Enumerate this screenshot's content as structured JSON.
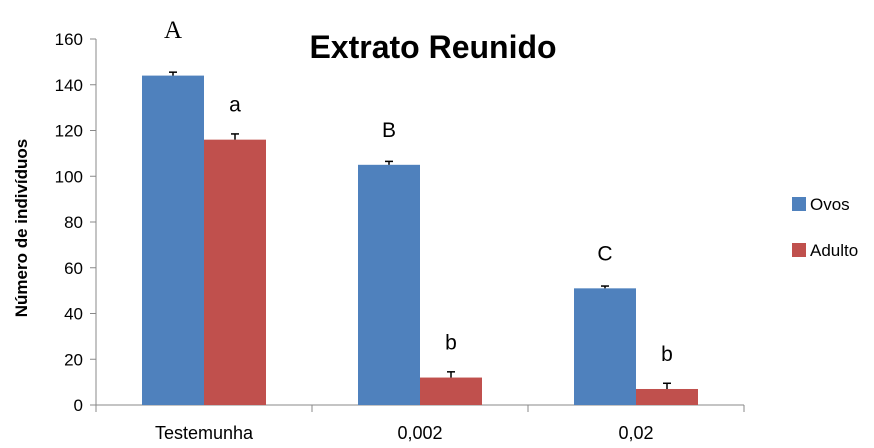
{
  "chart_data": {
    "type": "bar",
    "title": "Extrato Reunido",
    "xlabel": "",
    "ylabel": "Número de indivíduos",
    "categories": [
      "Testemunha",
      "0,002",
      "0,02"
    ],
    "ylim": [
      0,
      160
    ],
    "yticks": [
      "0",
      "20",
      "40",
      "60",
      "80",
      "100",
      "120",
      "140",
      "160"
    ],
    "grid": false,
    "legend_position": "right",
    "series": [
      {
        "name": "Ovos",
        "color": "#4F81BD",
        "values": [
          144,
          105,
          51
        ],
        "errors": [
          1.5,
          1.5,
          1
        ],
        "significance": [
          "A",
          "B",
          "C"
        ]
      },
      {
        "name": "Adulto",
        "color": "#C0504D",
        "values": [
          116,
          12,
          7
        ],
        "errors": [
          2.5,
          2.5,
          2.5
        ],
        "significance": [
          "a",
          "b",
          "b"
        ]
      }
    ]
  }
}
